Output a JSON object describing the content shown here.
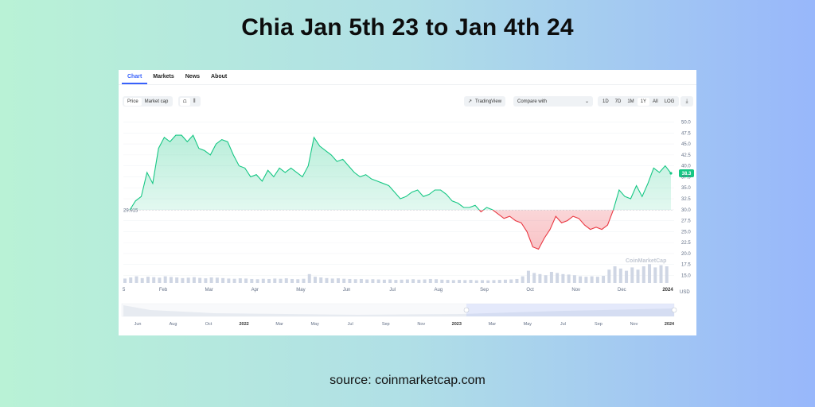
{
  "page": {
    "title": "Chia Jan 5th 23 to Jan 4th 24",
    "source": "source: coinmarketcap.com"
  },
  "tabs": [
    {
      "label": "Chart",
      "active": true
    },
    {
      "label": "Markets",
      "active": false
    },
    {
      "label": "News",
      "active": false
    },
    {
      "label": "About",
      "active": false
    }
  ],
  "toolbar": {
    "price_label": "Price",
    "market_cap_label": "Market cap",
    "line_icon": "line-chart-icon",
    "candle_icon": "candlestick-icon",
    "tradingview_label": "TradingView",
    "compare_label": "Compare with",
    "ranges": [
      "1D",
      "7D",
      "1M",
      "1Y",
      "All",
      "LOG"
    ],
    "selected_range": "1Y",
    "download_icon": "download-icon"
  },
  "watermark": "CoinMarketCap",
  "colors": {
    "up": "#16c784",
    "down": "#ea3943",
    "accent": "#3861fb",
    "price_badge": "#16c784"
  },
  "chart_data": {
    "type": "area",
    "title": "",
    "xlabel": "",
    "ylabel": "USD",
    "ylim": [
      14,
      51
    ],
    "ylim_note_ticks": [
      15.0,
      17.5,
      20.0,
      22.5,
      25.0,
      27.5,
      30.0,
      32.5,
      35.0,
      37.5,
      40.0,
      42.5,
      45.0,
      47.5,
      50.0
    ],
    "y_ticks": [
      "15.0",
      "17.5",
      "20.0",
      "22.5",
      "25.0",
      "27.5",
      "30.0",
      "32.5",
      "35.0",
      "37.5",
      "40.0",
      "42.5",
      "45.0",
      "47.5",
      "50.0"
    ],
    "x_ticks": [
      "5",
      "Feb",
      "Mar",
      "Apr",
      "May",
      "Jun",
      "Jul",
      "Aug",
      "Sep",
      "Oct",
      "Nov",
      "Dec",
      "2024"
    ],
    "baseline_value": 29.915,
    "baseline_label": "29.915",
    "current_price_label": "38.3",
    "current_price": 38.3,
    "unit": "USD",
    "series": [
      {
        "values": [
          29.9,
          32.0,
          33.0,
          38.5,
          36.0,
          44.0,
          46.5,
          45.5,
          47.0,
          47.0,
          45.5,
          47.0,
          44.0,
          43.5,
          42.5,
          45.0,
          46.0,
          45.5,
          42.5,
          40.0,
          39.5,
          37.5,
          38.0,
          36.5,
          39.0,
          37.5,
          39.5,
          38.5,
          39.5,
          38.5,
          37.5,
          40.0,
          46.5,
          44.5,
          43.5,
          42.5,
          41.0,
          41.5,
          40.0,
          38.5,
          37.5,
          38.0,
          37.0,
          36.5,
          36.0,
          35.5,
          34.0,
          32.5,
          33.0,
          34.0,
          34.5,
          33.0,
          33.5,
          34.5,
          34.5,
          33.5,
          32.0,
          31.5,
          30.5,
          30.5,
          31.0,
          29.5,
          30.5,
          30.0,
          29.0,
          28.0,
          28.5,
          27.5,
          27.0,
          25.0,
          21.5,
          21.0,
          23.5,
          25.5,
          28.5,
          27.0,
          27.5,
          28.5,
          28.0,
          26.5,
          25.5,
          26.0,
          25.5,
          26.5,
          30.0,
          34.5,
          33.0,
          32.5,
          35.5,
          33.0,
          36.0,
          39.5,
          38.5,
          40.0,
          38.3
        ]
      }
    ],
    "volume_note": "volume bars shown along bottom of plot",
    "volume": [
      0.2,
      0.25,
      0.3,
      0.22,
      0.28,
      0.26,
      0.24,
      0.3,
      0.27,
      0.25,
      0.22,
      0.24,
      0.26,
      0.23,
      0.21,
      0.25,
      0.24,
      0.22,
      0.2,
      0.19,
      0.21,
      0.2,
      0.18,
      0.17,
      0.19,
      0.18,
      0.2,
      0.19,
      0.21,
      0.18,
      0.17,
      0.19,
      0.4,
      0.28,
      0.25,
      0.22,
      0.2,
      0.21,
      0.19,
      0.18,
      0.17,
      0.18,
      0.16,
      0.17,
      0.16,
      0.15,
      0.16,
      0.14,
      0.15,
      0.16,
      0.17,
      0.15,
      0.16,
      0.18,
      0.17,
      0.15,
      0.14,
      0.13,
      0.14,
      0.13,
      0.14,
      0.12,
      0.13,
      0.12,
      0.13,
      0.14,
      0.15,
      0.16,
      0.18,
      0.3,
      0.55,
      0.45,
      0.4,
      0.35,
      0.5,
      0.45,
      0.4,
      0.38,
      0.35,
      0.3,
      0.28,
      0.3,
      0.28,
      0.32,
      0.6,
      0.75,
      0.65,
      0.55,
      0.7,
      0.6,
      0.75,
      0.85,
      0.7,
      0.8,
      0.75
    ],
    "navigator": {
      "x_ticks": [
        "Jun",
        "Aug",
        "Oct",
        "2022",
        "Mar",
        "May",
        "Jul",
        "Sep",
        "Nov",
        "2023",
        "Mar",
        "May",
        "Jul",
        "Sep",
        "Nov",
        "2024"
      ],
      "bold_ticks": [
        "2022",
        "2023",
        "2024"
      ],
      "selected_from": "2023",
      "selected_to": "2024"
    }
  }
}
